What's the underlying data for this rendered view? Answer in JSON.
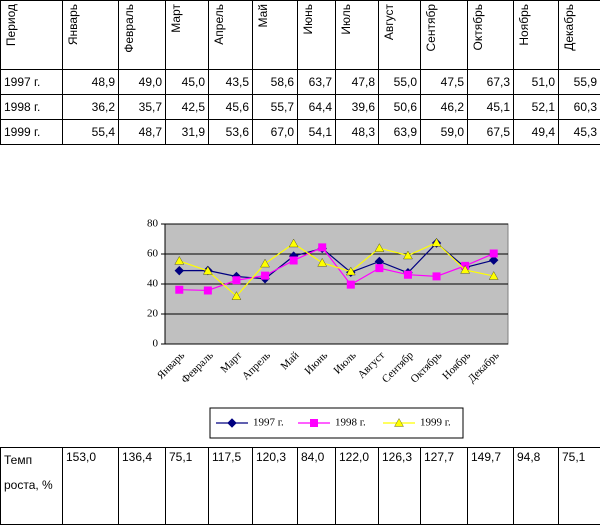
{
  "table": {
    "header": [
      "Период",
      "Январь",
      "Февраль",
      "Март",
      "Апрель",
      "Май",
      "Июнь",
      "Июль",
      "Август",
      "Сентябр",
      "Октябрь",
      "Ноябрь",
      "Декабрь"
    ],
    "rows": [
      [
        "1997 г.",
        "48,9",
        "49,0",
        "45,0",
        "43,5",
        "58,6",
        "63,7",
        "47,8",
        "55,0",
        "47,5",
        "67,3",
        "51,0",
        "55,9"
      ],
      [
        "1998 г.",
        "36,2",
        "35,7",
        "42,5",
        "45,6",
        "55,7",
        "64,4",
        "39,6",
        "50,6",
        "46,2",
        "45,1",
        "52,1",
        "60,3"
      ],
      [
        "1999 г.",
        "55,4",
        "48,7",
        "31,9",
        "53,6",
        "67,0",
        "54,1",
        "48,3",
        "63,9",
        "59,0",
        "67,5",
        "49,4",
        "45,3"
      ]
    ]
  },
  "chart_data": {
    "type": "line",
    "categories": [
      "Январь",
      "Февраль",
      "Март",
      "Апрель",
      "Май",
      "Июнь",
      "Июль",
      "Август",
      "Сентябр",
      "Октябрь",
      "Ноябрь",
      "Декабрь"
    ],
    "series": [
      {
        "name": "1997 г.",
        "color": "#000080",
        "marker": "diamond",
        "values": [
          48.9,
          49.0,
          45.0,
          43.5,
          58.6,
          63.7,
          47.8,
          55.0,
          47.5,
          67.3,
          51.0,
          55.9
        ]
      },
      {
        "name": "1998 г.",
        "color": "#ff00ff",
        "marker": "square",
        "values": [
          36.2,
          35.7,
          42.5,
          45.6,
          55.7,
          64.4,
          39.6,
          50.6,
          46.2,
          45.1,
          52.1,
          60.3
        ]
      },
      {
        "name": "1999 г.",
        "color": "#ffff00",
        "marker": "triangle",
        "values": [
          55.4,
          48.7,
          31.9,
          53.6,
          67.0,
          54.1,
          48.3,
          63.9,
          59.0,
          67.5,
          49.4,
          45.3
        ]
      }
    ],
    "ylim": [
      0,
      80
    ],
    "yticks": [
      0,
      20,
      40,
      60,
      80
    ],
    "grid": true,
    "legend": "bottom"
  },
  "growth": {
    "label": "Темп роста, %",
    "values": [
      "153,0",
      "136,4",
      "75,1",
      "117,5",
      "120,3",
      "84,0",
      "122,0",
      "126,3",
      "127,7",
      "149,7",
      "94,8",
      "75,1"
    ]
  }
}
